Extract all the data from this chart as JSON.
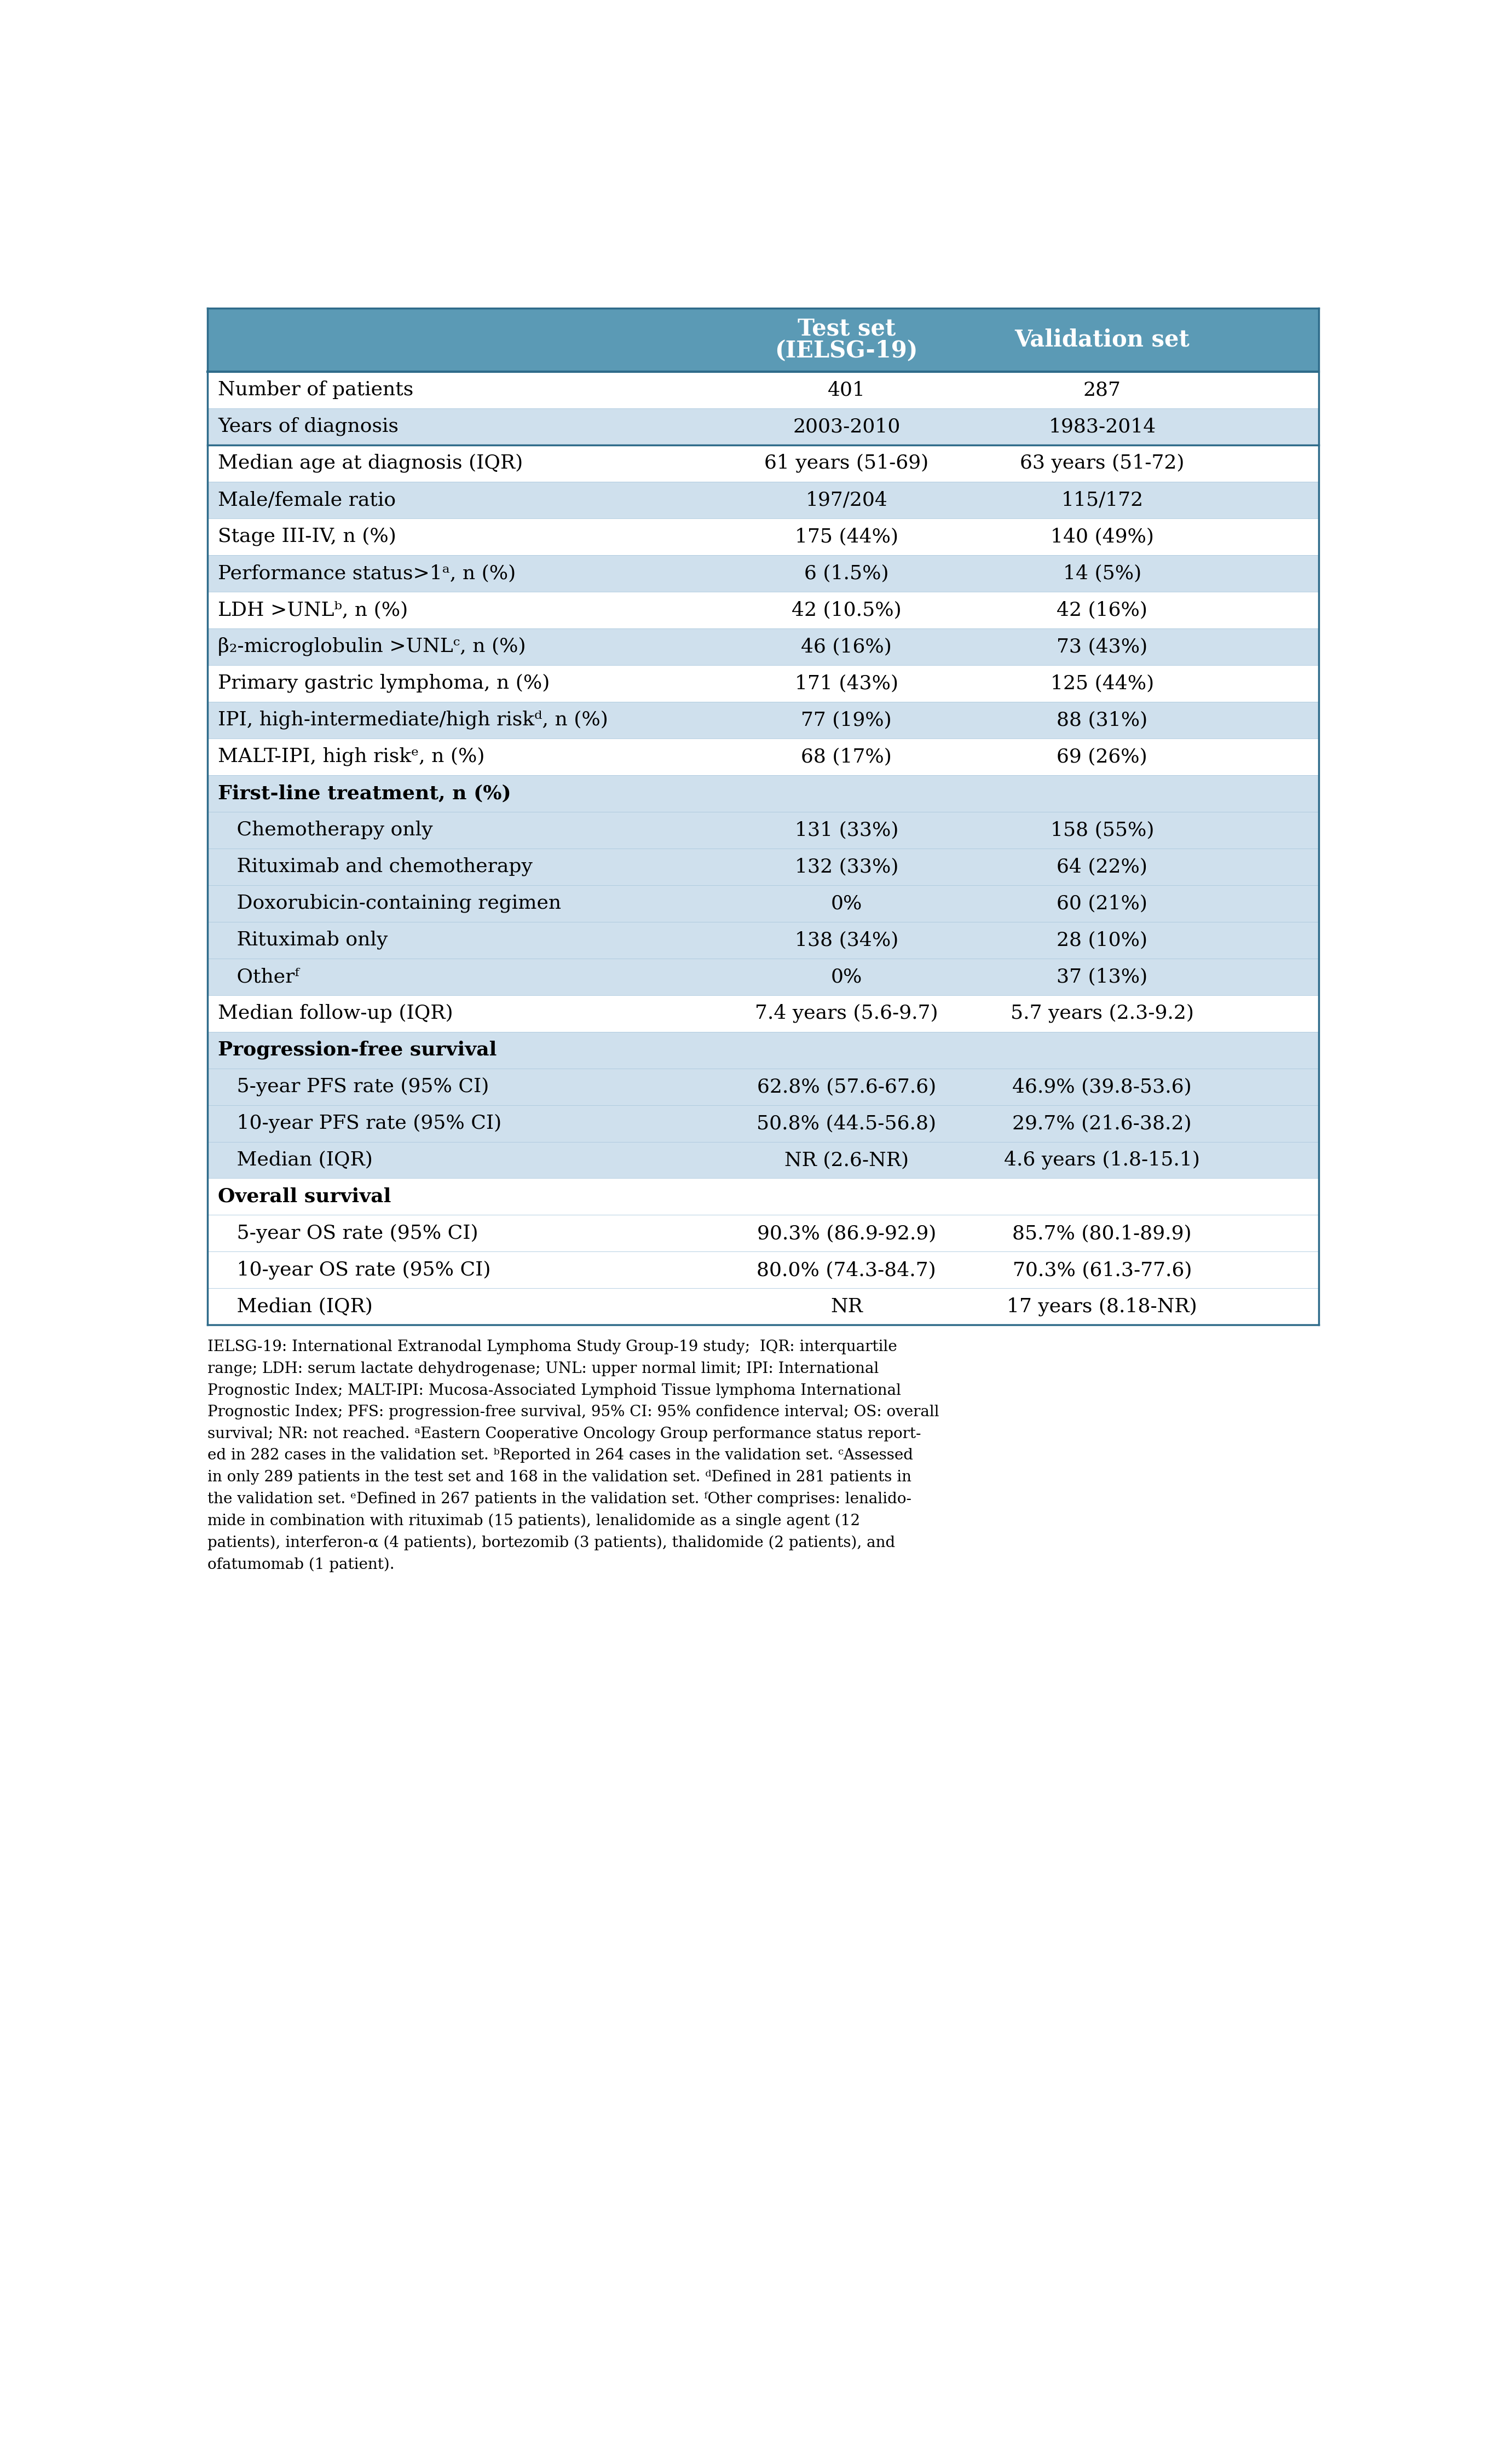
{
  "header_bg": "#5b9ab5",
  "header_text_color": "#ffffff",
  "row_bg_light": "#cfe0ed",
  "row_bg_white": "#ffffff",
  "text_color": "#000000",
  "border_color": "#2e6b8a",
  "rows": [
    {
      "label": "Number of patients",
      "v1": "401",
      "v2": "287",
      "bg": "white",
      "bold": false,
      "indent": 0,
      "heavy_bottom": false
    },
    {
      "label": "Years of diagnosis",
      "v1": "2003-2010",
      "v2": "1983-2014",
      "bg": "light",
      "bold": false,
      "indent": 0,
      "heavy_bottom": true
    },
    {
      "label": "Median age at diagnosis (IQR)",
      "v1": "61 years (51-69)",
      "v2": "63 years (51-72)",
      "bg": "white",
      "bold": false,
      "indent": 0,
      "heavy_bottom": false
    },
    {
      "label": "Male/female ratio",
      "v1": "197/204",
      "v2": "115/172",
      "bg": "light",
      "bold": false,
      "indent": 0,
      "heavy_bottom": false
    },
    {
      "label": "Stage III-IV, n (%)",
      "v1": "175 (44%)",
      "v2": "140 (49%)",
      "bg": "white",
      "bold": false,
      "indent": 0,
      "heavy_bottom": false
    },
    {
      "label": "Performance status>1ᵃ, n (%)",
      "v1": "6 (1.5%)",
      "v2": "14 (5%)",
      "bg": "light",
      "bold": false,
      "indent": 0,
      "heavy_bottom": false
    },
    {
      "label": "LDH >UNLᵇ, n (%)",
      "v1": "42 (10.5%)",
      "v2": "42 (16%)",
      "bg": "white",
      "bold": false,
      "indent": 0,
      "heavy_bottom": false
    },
    {
      "label": "β₂-microglobulin >UNLᶜ, n (%)",
      "v1": "46 (16%)",
      "v2": "73 (43%)",
      "bg": "light",
      "bold": false,
      "indent": 0,
      "heavy_bottom": false
    },
    {
      "label": "Primary gastric lymphoma, n (%)",
      "v1": "171 (43%)",
      "v2": "125 (44%)",
      "bg": "white",
      "bold": false,
      "indent": 0,
      "heavy_bottom": false
    },
    {
      "label": "IPI, high-intermediate/high riskᵈ, n (%)",
      "v1": "77 (19%)",
      "v2": "88 (31%)",
      "bg": "light",
      "bold": false,
      "indent": 0,
      "heavy_bottom": false
    },
    {
      "label": "MALT-IPI, high riskᵉ, n (%)",
      "v1": "68 (17%)",
      "v2": "69 (26%)",
      "bg": "white",
      "bold": false,
      "indent": 0,
      "heavy_bottom": false
    },
    {
      "label": "First-line treatment, n (%)",
      "v1": "",
      "v2": "",
      "bg": "light",
      "bold": true,
      "indent": 0,
      "heavy_bottom": false
    },
    {
      "label": "   Chemotherapy only",
      "v1": "131 (33%)",
      "v2": "158 (55%)",
      "bg": "light",
      "bold": false,
      "indent": 1,
      "heavy_bottom": false
    },
    {
      "label": "   Rituximab and chemotherapy",
      "v1": "132 (33%)",
      "v2": "64 (22%)",
      "bg": "light",
      "bold": false,
      "indent": 1,
      "heavy_bottom": false
    },
    {
      "label": "   Doxorubicin-containing regimen",
      "v1": "0%",
      "v2": "60 (21%)",
      "bg": "light",
      "bold": false,
      "indent": 1,
      "heavy_bottom": false
    },
    {
      "label": "   Rituximab only",
      "v1": "138 (34%)",
      "v2": "28 (10%)",
      "bg": "light",
      "bold": false,
      "indent": 1,
      "heavy_bottom": false
    },
    {
      "label": "   Otherᶠ",
      "v1": "0%",
      "v2": "37 (13%)",
      "bg": "light",
      "bold": false,
      "indent": 1,
      "heavy_bottom": false
    },
    {
      "label": "Median follow-up (IQR)",
      "v1": "7.4 years (5.6-9.7)",
      "v2": "5.7 years (2.3-9.2)",
      "bg": "white",
      "bold": false,
      "indent": 0,
      "heavy_bottom": false
    },
    {
      "label": "Progression-free survival",
      "v1": "",
      "v2": "",
      "bg": "light",
      "bold": true,
      "indent": 0,
      "heavy_bottom": false
    },
    {
      "label": "   5-year PFS rate (95% CI)",
      "v1": "62.8% (57.6-67.6)",
      "v2": "46.9% (39.8-53.6)",
      "bg": "light",
      "bold": false,
      "indent": 1,
      "heavy_bottom": false
    },
    {
      "label": "   10-year PFS rate (95% CI)",
      "v1": "50.8% (44.5-56.8)",
      "v2": "29.7% (21.6-38.2)",
      "bg": "light",
      "bold": false,
      "indent": 1,
      "heavy_bottom": false
    },
    {
      "label": "   Median (IQR)",
      "v1": "NR (2.6-NR)",
      "v2": "4.6 years (1.8-15.1)",
      "bg": "light",
      "bold": false,
      "indent": 1,
      "heavy_bottom": false
    },
    {
      "label": "Overall survival",
      "v1": "",
      "v2": "",
      "bg": "white",
      "bold": true,
      "indent": 0,
      "heavy_bottom": false
    },
    {
      "label": "   5-year OS rate (95% CI)",
      "v1": "90.3% (86.9-92.9)",
      "v2": "85.7% (80.1-89.9)",
      "bg": "white",
      "bold": false,
      "indent": 1,
      "heavy_bottom": false
    },
    {
      "label": "   10-year OS rate (95% CI)",
      "v1": "80.0% (74.3-84.7)",
      "v2": "70.3% (61.3-77.6)",
      "bg": "white",
      "bold": false,
      "indent": 1,
      "heavy_bottom": false
    },
    {
      "label": "   Median (IQR)",
      "v1": "NR",
      "v2": "17 years (8.18-NR)",
      "bg": "white",
      "bold": false,
      "indent": 1,
      "heavy_bottom": false
    }
  ],
  "footer_lines": [
    "IELSG-19: International Extranodal Lymphoma Study Group-19 study;  IQR: interquartile range; LDH: serum lactate dehydrogenase; UNL: upper normal limit; IPI: International Prognostic Index; MALT-IPI: Mucosa-Associated Lymphoid Tissue lymphoma International Prognostic Index; PFS: progression-free survival, 95% CI: 95% confidence interval; OS: overall survival; NR: not reached. ᵃEastern Cooperative Oncology Group performance status report-ed in 282 cases in the validation set. ᵇReported in 264 cases in the validation set. ᶜAssessed in only 289 patients in the test set and 168 in the validation set. ᵈDefined in 281 patients in the validation set. ᵉDefined in 267 patients in the validation set. ᶠOther comprises: lenalido-mide in combination with rituximab (15 patients), lenalidomide as a single agent (12 patients), interferon-α (4 patients), bortezomib (3 patients), thalidomide (2 patients), and ofatumomab (1 patient)."
  ]
}
